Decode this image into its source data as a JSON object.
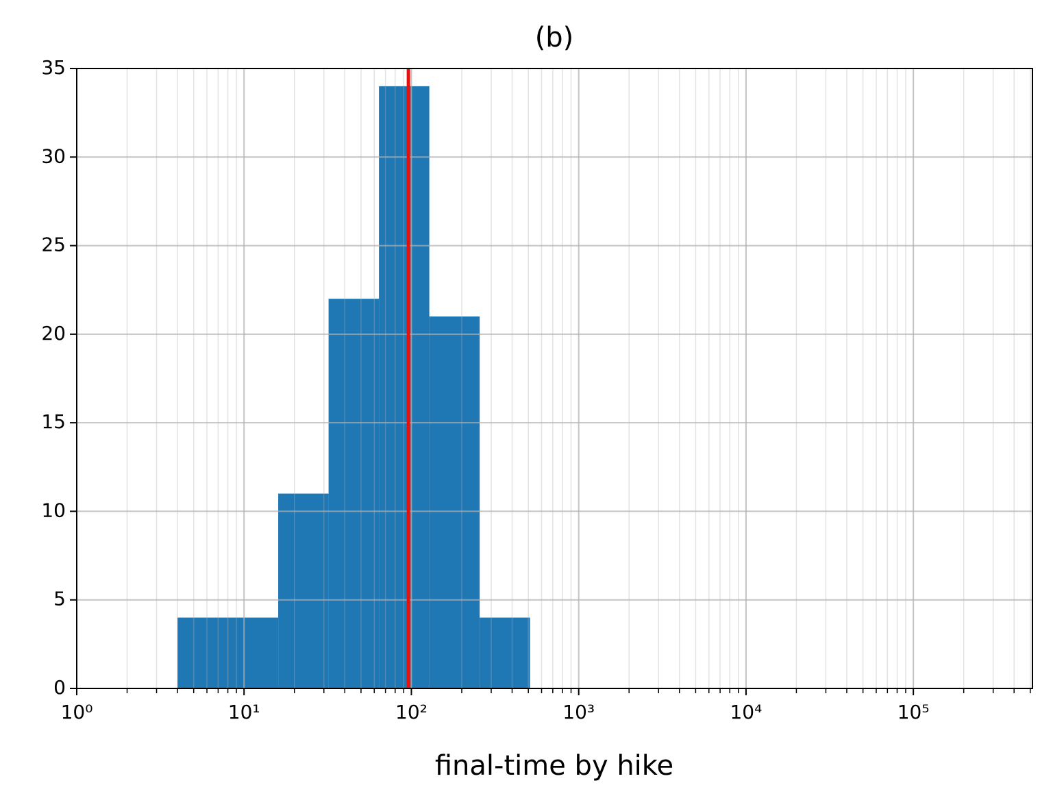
{
  "chart_data": {
    "type": "histogram",
    "title": "(b)",
    "xlabel": "final-time by hike",
    "bins": [
      4,
      8,
      16,
      32,
      64,
      128,
      256,
      512
    ],
    "counts": [
      4,
      4,
      11,
      22,
      34,
      21,
      4
    ],
    "color": "#1f77b4",
    "vline": 96,
    "vline_color": "#e8100c",
    "xscale": "log",
    "xlim": [
      1,
      515000
    ],
    "xticks": [
      {
        "value": 1,
        "label": "10⁰"
      },
      {
        "value": 10,
        "label": "10¹"
      },
      {
        "value": 100,
        "label": "10²"
      },
      {
        "value": 1000,
        "label": "10³"
      },
      {
        "value": 10000,
        "label": "10⁴"
      },
      {
        "value": 100000,
        "label": "10⁵"
      }
    ],
    "ylim": [
      0,
      35
    ],
    "yticks": [
      0,
      5,
      10,
      15,
      20,
      25,
      30,
      35
    ],
    "grid": true,
    "minor_grid": true
  }
}
